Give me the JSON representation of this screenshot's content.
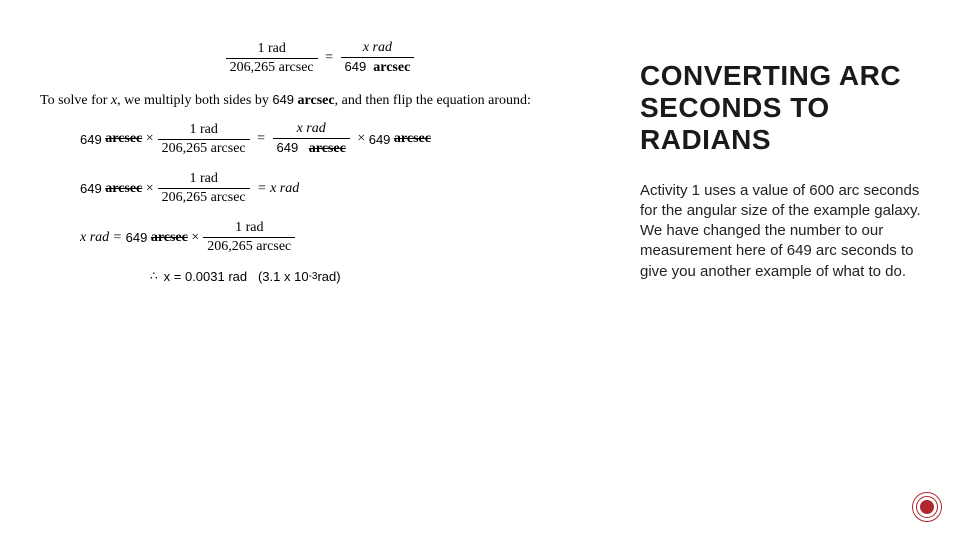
{
  "title": "CONVERTING ARC SECONDS TO RADIANS",
  "body": "Activity 1 uses a value of 600 arc seconds for the angular size of the example galaxy.  We have changed the number to our measurement here of 649 arc seconds to give you another example of what to do.",
  "val": "649",
  "conv_den": "206,265 arcsec",
  "one_rad": "1 rad",
  "x_rad": "x rad",
  "arcsec_word": "arcsec",
  "narrative_a": "To solve for ",
  "narrative_b": ", we multiply both sides by ",
  "narrative_c": ", and then flip the equation around:",
  "x_var": "x",
  "times": "×",
  "equals": "=",
  "x_rad_eq": "x rad =",
  "eq_xrad": "= x rad",
  "result_prefix": "∴",
  "result_a": "x = 0.0031 rad",
  "result_b": "(3.1 x 10",
  "result_exp": "-3",
  "result_c": " rad)",
  "accent": "#b0282e"
}
